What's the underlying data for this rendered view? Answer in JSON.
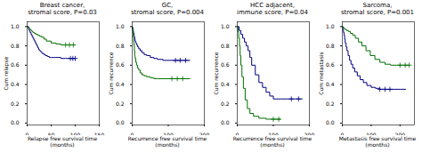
{
  "chart_data": [
    {
      "type": "line",
      "title": "Breast cancer,\nstromal score, P=0.03",
      "ylabel": "Cum relapse",
      "xlabel": "Relapse free survival time\n(months)",
      "xlim": [
        0,
        150
      ],
      "ylim": [
        -0.02,
        1.05
      ],
      "xticks": [
        0,
        50,
        100,
        150
      ],
      "yticks": [
        {
          "value": 0,
          "label": "0.0"
        },
        0.2,
        0.4,
        0.6,
        0.8,
        {
          "value": 1,
          "label": "1.0"
        }
      ],
      "grid": false,
      "series": [
        {
          "color": "#000080",
          "line_style": "step",
          "x": [
            0,
            3,
            4,
            6,
            8,
            10,
            12,
            14,
            16,
            18,
            20,
            22,
            24,
            26,
            28,
            30,
            32,
            35,
            38,
            42,
            46,
            50,
            55,
            60,
            70,
            80,
            90,
            100
          ],
          "values": [
            1.0,
            0.97,
            0.96,
            0.94,
            0.92,
            0.9,
            0.88,
            0.86,
            0.84,
            0.82,
            0.8,
            0.78,
            0.76,
            0.75,
            0.74,
            0.73,
            0.72,
            0.71,
            0.7,
            0.69,
            0.68,
            0.68,
            0.68,
            0.68,
            0.67,
            0.67,
            0.67,
            0.67
          ]
        },
        {
          "color": "#007000",
          "line_style": "step",
          "x": [
            0,
            2,
            4,
            6,
            8,
            10,
            12,
            15,
            18,
            22,
            26,
            30,
            35,
            40,
            50,
            60,
            70,
            80,
            90,
            100
          ],
          "values": [
            1.0,
            0.99,
            0.98,
            0.97,
            0.96,
            0.95,
            0.94,
            0.93,
            0.92,
            0.91,
            0.9,
            0.89,
            0.87,
            0.85,
            0.83,
            0.82,
            0.81,
            0.81,
            0.81,
            0.81
          ]
        },
        {
          "type": "scatter",
          "marker": "plus",
          "color": "#000080",
          "x": [
            90,
            95,
            100
          ],
          "values": [
            0.67,
            0.67,
            0.67
          ]
        },
        {
          "type": "scatter",
          "marker": "plus",
          "color": "#007000",
          "x": [
            80,
            88,
            96
          ],
          "values": [
            0.81,
            0.81,
            0.81
          ]
        }
      ]
    },
    {
      "type": "line",
      "title": "GC,\nstromal score, P=0.004",
      "ylabel": "Cum recurrence",
      "xlabel": "Recurrence free survival time\n(months)",
      "xlim": [
        0,
        200
      ],
      "ylim": [
        -0.02,
        1.05
      ],
      "xticks": [
        0,
        100,
        200
      ],
      "yticks": [
        {
          "value": 0,
          "label": "0.0"
        },
        0.2,
        0.4,
        0.6,
        0.8,
        {
          "value": 1,
          "label": "1.0"
        }
      ],
      "grid": false,
      "series": [
        {
          "color": "#000080",
          "line_style": "step",
          "x": [
            0,
            1,
            2,
            3,
            4,
            5,
            6,
            7,
            8,
            10,
            12,
            15,
            18,
            22,
            27,
            33,
            40,
            50,
            60,
            70,
            85,
            100,
            120,
            140,
            160
          ],
          "values": [
            1.0,
            0.98,
            0.97,
            0.95,
            0.93,
            0.91,
            0.89,
            0.87,
            0.85,
            0.83,
            0.81,
            0.79,
            0.77,
            0.75,
            0.73,
            0.71,
            0.7,
            0.68,
            0.67,
            0.66,
            0.65,
            0.65,
            0.65,
            0.65,
            0.65
          ]
        },
        {
          "color": "#007000",
          "line_style": "step",
          "x": [
            0,
            1,
            2,
            3,
            4,
            5,
            6,
            7,
            8,
            10,
            12,
            15,
            18,
            22,
            27,
            33,
            40,
            50,
            60,
            70,
            85,
            100,
            120,
            140,
            160
          ],
          "values": [
            1.0,
            0.97,
            0.93,
            0.89,
            0.84,
            0.8,
            0.75,
            0.7,
            0.67,
            0.63,
            0.6,
            0.57,
            0.55,
            0.52,
            0.5,
            0.49,
            0.48,
            0.47,
            0.46,
            0.46,
            0.46,
            0.46,
            0.46,
            0.46,
            0.46
          ]
        },
        {
          "type": "scatter",
          "marker": "plus",
          "color": "#000080",
          "x": [
            120,
            133,
            148
          ],
          "values": [
            0.65,
            0.65,
            0.65
          ]
        },
        {
          "type": "scatter",
          "marker": "plus",
          "color": "#007000",
          "x": [
            110,
            125,
            140
          ],
          "values": [
            0.46,
            0.46,
            0.46
          ]
        }
      ]
    },
    {
      "type": "line",
      "title": "HCC adjacent,\nimmune score, P=0.04",
      "ylabel": "Cum recurrence",
      "xlabel": "Recurrence free survival time\n(months)",
      "xlim": [
        0,
        200
      ],
      "ylim": [
        -0.02,
        1.05
      ],
      "xticks": [
        0,
        100,
        200
      ],
      "yticks": [
        {
          "value": 0,
          "label": "0.0"
        },
        0.2,
        0.4,
        0.6,
        0.8,
        {
          "value": 1,
          "label": "1.0"
        }
      ],
      "grid": false,
      "series": [
        {
          "color": "#000080",
          "line_style": "step",
          "x": [
            0,
            5,
            10,
            15,
            20,
            25,
            30,
            35,
            40,
            50,
            60,
            70,
            80,
            90,
            100,
            120,
            140,
            160,
            180
          ],
          "values": [
            1.0,
            0.96,
            0.92,
            0.88,
            0.84,
            0.8,
            0.75,
            0.68,
            0.6,
            0.5,
            0.42,
            0.37,
            0.32,
            0.28,
            0.25,
            0.25,
            0.25,
            0.25,
            0.25
          ]
        },
        {
          "color": "#007000",
          "line_style": "step",
          "x": [
            0,
            2,
            4,
            6,
            8,
            10,
            13,
            17,
            22,
            28,
            35,
            45,
            60,
            80,
            100,
            120
          ],
          "values": [
            1.0,
            0.95,
            0.88,
            0.8,
            0.7,
            0.6,
            0.48,
            0.36,
            0.24,
            0.15,
            0.1,
            0.07,
            0.05,
            0.04,
            0.04,
            0.04
          ]
        },
        {
          "type": "scatter",
          "marker": "plus",
          "color": "#000080",
          "x": [
            150,
            170
          ],
          "values": [
            0.25,
            0.25
          ]
        },
        {
          "type": "scatter",
          "marker": "plus",
          "color": "#007000",
          "x": [
            100,
            115
          ],
          "values": [
            0.04,
            0.04
          ]
        }
      ]
    },
    {
      "type": "line",
      "title": "Sarcoma,\nstromal score, P=0.001",
      "ylabel": "Cum metastasis",
      "xlabel": "Metastasis free survival time\n(months)",
      "xlim": [
        0,
        250
      ],
      "ylim": [
        -0.02,
        1.05
      ],
      "xticks": [
        0,
        100,
        200
      ],
      "yticks": [
        {
          "value": 0,
          "label": "0.0"
        },
        0.2,
        0.4,
        0.6,
        0.8,
        {
          "value": 1,
          "label": "1.0"
        }
      ],
      "grid": false,
      "series": [
        {
          "color": "#000080",
          "line_style": "step",
          "x": [
            0,
            2,
            4,
            6,
            8,
            10,
            13,
            16,
            20,
            25,
            30,
            36,
            43,
            52,
            62,
            73,
            85,
            100,
            115,
            130,
            145,
            160,
            180,
            200,
            220
          ],
          "values": [
            1.0,
            0.97,
            0.94,
            0.91,
            0.87,
            0.83,
            0.79,
            0.75,
            0.7,
            0.65,
            0.61,
            0.57,
            0.53,
            0.49,
            0.45,
            0.42,
            0.39,
            0.37,
            0.36,
            0.35,
            0.35,
            0.35,
            0.35,
            0.35,
            0.35
          ]
        },
        {
          "color": "#007000",
          "line_style": "step",
          "x": [
            0,
            3,
            6,
            10,
            15,
            21,
            28,
            36,
            45,
            56,
            68,
            82,
            97,
            113,
            130,
            148,
            167,
            188,
            210,
            232
          ],
          "values": [
            1.0,
            0.99,
            0.98,
            0.97,
            0.96,
            0.95,
            0.93,
            0.91,
            0.88,
            0.84,
            0.8,
            0.75,
            0.7,
            0.66,
            0.63,
            0.61,
            0.6,
            0.6,
            0.6,
            0.6
          ]
        },
        {
          "type": "scatter",
          "marker": "plus",
          "color": "#000080",
          "x": [
            130,
            148,
            165
          ],
          "values": [
            0.35,
            0.35,
            0.35
          ]
        },
        {
          "type": "scatter",
          "marker": "plus",
          "color": "#007000",
          "x": [
            200,
            218,
            232
          ],
          "values": [
            0.6,
            0.6,
            0.6
          ]
        }
      ]
    }
  ]
}
